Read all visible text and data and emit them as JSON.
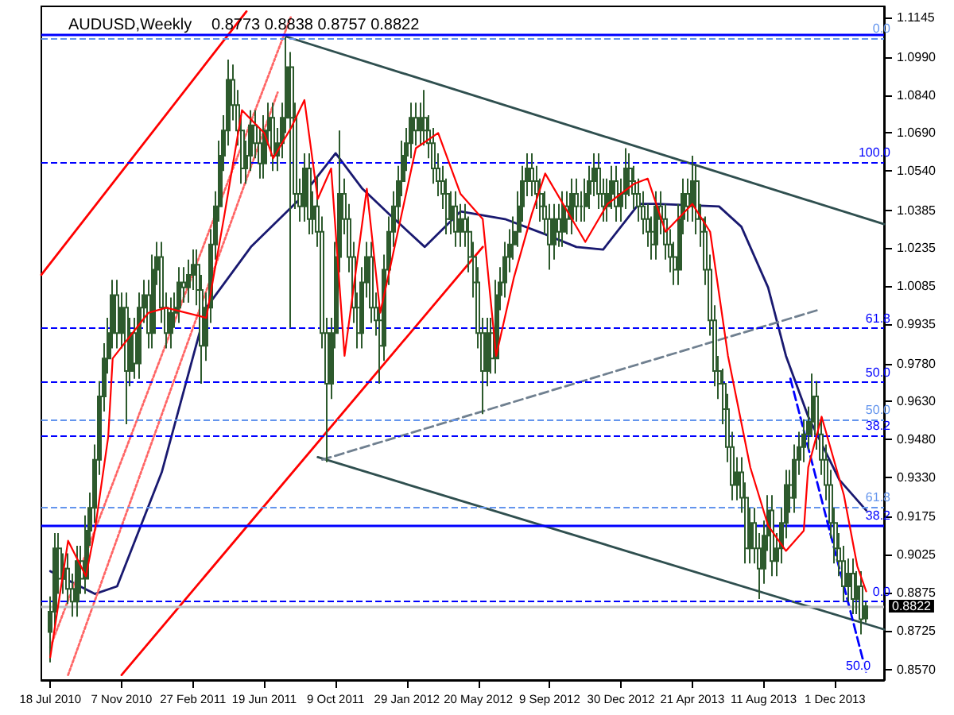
{
  "chart_data": {
    "type": "candlestick",
    "title": "AUDUSD,Weekly",
    "subtitle": "0.8773 0.8838 0.8757 0.8822",
    "marker": "none",
    "xlim": [
      "2010-07-04",
      "2014-02-16"
    ],
    "ylim": [
      0.853,
      1.119
    ],
    "xticks": [
      {
        "value": "2010-07-18",
        "label": "18 Jul 2010"
      },
      {
        "value": "2010-11-07",
        "label": "7 Nov 2010"
      },
      {
        "value": "2011-02-27",
        "label": "27 Feb 2011"
      },
      {
        "value": "2011-06-19",
        "label": "19 Jun 2011"
      },
      {
        "value": "2011-10-09",
        "label": "9 Oct 2011"
      },
      {
        "value": "2012-01-29",
        "label": "29 Jan 2012"
      },
      {
        "value": "2012-05-20",
        "label": "20 May 2012"
      },
      {
        "value": "2012-09-09",
        "label": "9 Sep 2012"
      },
      {
        "value": "2012-12-30",
        "label": "30 Dec 2012"
      },
      {
        "value": "2013-04-21",
        "label": "21 Apr 2013"
      },
      {
        "value": "2013-08-11",
        "label": "11 Aug 2013"
      },
      {
        "value": "2013-12-01",
        "label": "1 Dec 2013"
      }
    ],
    "yticks": [
      {
        "value": 1.1145,
        "label": "1.1145"
      },
      {
        "value": 1.099,
        "label": "1.0990"
      },
      {
        "value": 1.084,
        "label": "1.0840"
      },
      {
        "value": 1.069,
        "label": "1.0690"
      },
      {
        "value": 1.054,
        "label": "1.0540"
      },
      {
        "value": 1.0385,
        "label": "1.0385"
      },
      {
        "value": 1.0235,
        "label": "1.0235"
      },
      {
        "value": 1.0085,
        "label": "1.0085"
      },
      {
        "value": 0.9935,
        "label": "0.9935"
      },
      {
        "value": 0.978,
        "label": "0.9780"
      },
      {
        "value": 0.963,
        "label": "0.9630"
      },
      {
        "value": 0.948,
        "label": "0.9480"
      },
      {
        "value": 0.933,
        "label": "0.9330"
      },
      {
        "value": 0.9175,
        "label": "0.9175"
      },
      {
        "value": 0.9025,
        "label": "0.9025"
      },
      {
        "value": 0.8875,
        "label": "0.8875"
      },
      {
        "value": 0.8725,
        "label": "0.8725"
      },
      {
        "value": 0.857,
        "label": "0.8570"
      }
    ],
    "series": [
      {
        "type": "candlestick",
        "color": "#2d5a2d",
        "x": [
          "2010-07-18",
          "2010-07-25",
          "2010-08-01",
          "2010-08-08",
          "2010-08-15",
          "2010-08-22",
          "2010-08-29",
          "2010-09-05",
          "2010-09-12",
          "2010-09-19",
          "2010-09-26",
          "2010-10-03",
          "2010-10-10",
          "2010-10-17",
          "2010-10-24",
          "2010-10-31",
          "2010-11-07",
          "2010-11-14",
          "2010-11-21",
          "2010-11-28",
          "2010-12-05",
          "2010-12-12",
          "2010-12-19",
          "2010-12-26",
          "2011-01-02",
          "2011-01-09",
          "2011-01-16",
          "2011-01-23",
          "2011-01-30",
          "2011-02-06",
          "2011-02-13",
          "2011-02-20",
          "2011-02-27",
          "2011-03-06",
          "2011-03-13",
          "2011-03-20",
          "2011-03-27",
          "2011-04-03",
          "2011-04-10",
          "2011-04-17",
          "2011-04-24",
          "2011-05-01",
          "2011-05-08",
          "2011-05-15",
          "2011-05-22",
          "2011-05-29",
          "2011-06-05",
          "2011-06-12",
          "2011-06-19",
          "2011-06-26",
          "2011-07-03",
          "2011-07-10",
          "2011-07-17",
          "2011-07-24",
          "2011-07-31",
          "2011-08-07",
          "2011-08-14",
          "2011-08-21",
          "2011-08-28",
          "2011-09-04",
          "2011-09-11",
          "2011-09-18",
          "2011-09-25",
          "2011-10-02",
          "2011-10-09",
          "2011-10-16",
          "2011-10-23",
          "2011-10-30",
          "2011-11-06",
          "2011-11-13",
          "2011-11-20",
          "2011-11-27",
          "2011-12-04",
          "2011-12-11",
          "2011-12-18",
          "2011-12-25",
          "2012-01-01",
          "2012-01-08",
          "2012-01-15",
          "2012-01-22",
          "2012-01-29",
          "2012-02-05",
          "2012-02-12",
          "2012-02-19",
          "2012-02-26",
          "2012-03-04",
          "2012-03-11",
          "2012-03-18",
          "2012-03-25",
          "2012-04-01",
          "2012-04-08",
          "2012-04-15",
          "2012-04-22",
          "2012-04-29",
          "2012-05-06",
          "2012-05-13",
          "2012-05-20",
          "2012-05-27",
          "2012-06-03",
          "2012-06-10",
          "2012-06-17",
          "2012-06-24",
          "2012-07-01",
          "2012-07-08",
          "2012-07-15",
          "2012-07-22",
          "2012-07-29",
          "2012-08-05",
          "2012-08-12",
          "2012-08-19",
          "2012-08-26",
          "2012-09-02",
          "2012-09-09",
          "2012-09-16",
          "2012-09-23",
          "2012-09-30",
          "2012-10-07",
          "2012-10-14",
          "2012-10-21",
          "2012-10-28",
          "2012-11-04",
          "2012-11-11",
          "2012-11-18",
          "2012-11-25",
          "2012-12-02",
          "2012-12-09",
          "2012-12-16",
          "2012-12-23",
          "2012-12-30",
          "2013-01-06",
          "2013-01-13",
          "2013-01-20",
          "2013-01-27",
          "2013-02-03",
          "2013-02-10",
          "2013-02-17",
          "2013-02-24",
          "2013-03-03",
          "2013-03-10",
          "2013-03-17",
          "2013-03-24",
          "2013-03-31",
          "2013-04-07",
          "2013-04-14",
          "2013-04-21",
          "2013-04-28",
          "2013-05-05",
          "2013-05-12",
          "2013-05-19",
          "2013-05-26",
          "2013-06-02",
          "2013-06-09",
          "2013-06-16",
          "2013-06-23",
          "2013-06-30",
          "2013-07-07",
          "2013-07-14",
          "2013-07-21",
          "2013-07-28",
          "2013-08-04",
          "2013-08-11",
          "2013-08-18",
          "2013-08-25",
          "2013-09-01",
          "2013-09-08",
          "2013-09-15",
          "2013-09-22",
          "2013-09-29",
          "2013-10-06",
          "2013-10-13",
          "2013-10-20",
          "2013-10-27",
          "2013-11-03",
          "2013-11-10",
          "2013-11-17",
          "2013-11-24",
          "2013-12-01",
          "2013-12-08",
          "2013-12-15",
          "2013-12-22",
          "2013-12-29",
          "2014-01-05",
          "2014-01-12",
          "2014-01-19"
        ],
        "ohlc": [
          [
            0.872,
            0.886,
            0.86,
            0.88
          ],
          [
            0.88,
            0.911,
            0.874,
            0.905
          ],
          [
            0.905,
            0.911,
            0.887,
            0.893
          ],
          [
            0.893,
            0.903,
            0.887,
            0.897
          ],
          [
            0.897,
            0.903,
            0.883,
            0.889
          ],
          [
            0.889,
            0.895,
            0.878,
            0.884
          ],
          [
            0.884,
            0.906,
            0.878,
            0.9
          ],
          [
            0.9,
            0.906,
            0.887,
            0.893
          ],
          [
            0.893,
            0.918,
            0.887,
            0.912
          ],
          [
            0.912,
            0.927,
            0.906,
            0.921
          ],
          [
            0.921,
            0.946,
            0.915,
            0.94
          ],
          [
            0.94,
            0.971,
            0.934,
            0.965
          ],
          [
            0.965,
            0.986,
            0.959,
            0.98
          ],
          [
            0.98,
            0.996,
            0.974,
            0.99
          ],
          [
            0.99,
            1.011,
            0.984,
            1.005
          ],
          [
            1.005,
            1.011,
            0.984,
            0.99
          ],
          [
            0.99,
            1.006,
            0.984,
            1.0
          ],
          [
            1.0,
            1.006,
            0.954,
            0.975
          ],
          [
            0.975,
            0.996,
            0.969,
            0.99
          ],
          [
            0.99,
            0.996,
            0.972,
            0.978
          ],
          [
            0.978,
            1.006,
            0.972,
            1.0
          ],
          [
            1.0,
            1.011,
            0.994,
            1.005
          ],
          [
            1.005,
            1.011,
            0.984,
            0.99
          ],
          [
            0.99,
            1.021,
            0.984,
            1.015
          ],
          [
            1.015,
            1.026,
            1.009,
            1.02
          ],
          [
            1.02,
            1.026,
            0.994,
            1.0
          ],
          [
            1.0,
            1.006,
            0.984,
            0.99
          ],
          [
            0.99,
            1.004,
            0.984,
            0.998
          ],
          [
            0.998,
            1.006,
            0.992,
            1.0
          ],
          [
            1.0,
            1.016,
            0.994,
            1.01
          ],
          [
            1.01,
            1.016,
            1.002,
            1.008
          ],
          [
            1.008,
            1.019,
            1.002,
            1.013
          ],
          [
            1.013,
            1.023,
            1.007,
            1.017
          ],
          [
            1.017,
            1.023,
            1.001,
            1.007
          ],
          [
            1.007,
            1.013,
            0.97,
            0.985
          ],
          [
            0.985,
            1.006,
            0.979,
            1.0
          ],
          [
            1.0,
            1.031,
            0.994,
            1.025
          ],
          [
            1.025,
            1.046,
            1.019,
            1.04
          ],
          [
            1.04,
            1.066,
            1.034,
            1.06
          ],
          [
            1.06,
            1.076,
            1.054,
            1.07
          ],
          [
            1.07,
            1.098,
            1.064,
            1.09
          ],
          [
            1.09,
            1.096,
            1.074,
            1.08
          ],
          [
            1.08,
            1.086,
            1.064,
            1.07
          ],
          [
            1.07,
            1.076,
            1.049,
            1.055
          ],
          [
            1.055,
            1.066,
            1.049,
            1.06
          ],
          [
            1.06,
            1.078,
            1.054,
            1.072
          ],
          [
            1.072,
            1.078,
            1.059,
            1.065
          ],
          [
            1.065,
            1.071,
            1.051,
            1.057
          ],
          [
            1.057,
            1.076,
            1.051,
            1.07
          ],
          [
            1.07,
            1.081,
            1.064,
            1.075
          ],
          [
            1.075,
            1.081,
            1.054,
            1.06
          ],
          [
            1.06,
            1.071,
            1.054,
            1.065
          ],
          [
            1.065,
            1.081,
            1.059,
            1.075
          ],
          [
            1.075,
            1.107,
            1.069,
            1.095
          ],
          [
            1.095,
            1.101,
            0.992,
            1.075
          ],
          [
            1.075,
            1.081,
            1.039,
            1.045
          ],
          [
            1.045,
            1.051,
            1.034,
            1.04
          ],
          [
            1.04,
            1.061,
            1.034,
            1.055
          ],
          [
            1.055,
            1.061,
            1.029,
            1.035
          ],
          [
            1.035,
            1.046,
            1.029,
            1.04
          ],
          [
            1.04,
            1.052,
            1.024,
            1.03
          ],
          [
            1.03,
            1.036,
            0.984,
            0.99
          ],
          [
            0.99,
            0.996,
            0.939,
            0.97
          ],
          [
            0.97,
            0.996,
            0.964,
            0.99
          ],
          [
            0.99,
            1.026,
            0.984,
            1.02
          ],
          [
            1.02,
            1.07,
            1.014,
            1.045
          ],
          [
            1.045,
            1.051,
            1.029,
            1.035
          ],
          [
            1.035,
            1.041,
            1.014,
            1.02
          ],
          [
            1.02,
            1.026,
            0.994,
            1.0
          ],
          [
            1.0,
            1.006,
            0.984,
            0.99
          ],
          [
            0.99,
            1.016,
            0.984,
            1.01
          ],
          [
            1.01,
            1.026,
            1.004,
            1.02
          ],
          [
            1.02,
            1.026,
            0.994,
            1.0
          ],
          [
            1.0,
            1.006,
            0.989,
            0.995
          ],
          [
            0.995,
            1.001,
            0.97,
            0.985
          ],
          [
            0.985,
            1.021,
            0.979,
            1.015
          ],
          [
            1.015,
            1.036,
            1.009,
            1.03
          ],
          [
            1.03,
            1.046,
            1.024,
            1.04
          ],
          [
            1.04,
            1.056,
            1.034,
            1.05
          ],
          [
            1.05,
            1.066,
            1.044,
            1.06
          ],
          [
            1.06,
            1.071,
            1.054,
            1.065
          ],
          [
            1.065,
            1.081,
            1.059,
            1.075
          ],
          [
            1.075,
            1.081,
            1.064,
            1.07
          ],
          [
            1.07,
            1.081,
            1.064,
            1.075
          ],
          [
            1.075,
            1.086,
            1.064,
            1.07
          ],
          [
            1.07,
            1.076,
            1.059,
            1.065
          ],
          [
            1.065,
            1.071,
            1.049,
            1.055
          ],
          [
            1.055,
            1.061,
            1.044,
            1.05
          ],
          [
            1.05,
            1.056,
            1.039,
            1.045
          ],
          [
            1.045,
            1.051,
            1.029,
            1.035
          ],
          [
            1.035,
            1.046,
            1.029,
            1.04
          ],
          [
            1.04,
            1.046,
            1.024,
            1.03
          ],
          [
            1.03,
            1.041,
            1.024,
            1.035
          ],
          [
            1.035,
            1.041,
            1.024,
            1.03
          ],
          [
            1.03,
            1.036,
            1.014,
            1.02
          ],
          [
            1.02,
            1.026,
            1.004,
            1.01
          ],
          [
            1.01,
            1.016,
            0.984,
            0.99
          ],
          [
            0.99,
            0.996,
            0.958,
            0.975
          ],
          [
            0.975,
            0.996,
            0.969,
            0.99
          ],
          [
            0.99,
            0.996,
            0.974,
            0.98
          ],
          [
            0.98,
            1.011,
            0.974,
            1.005
          ],
          [
            1.005,
            1.016,
            0.999,
            1.01
          ],
          [
            1.01,
            1.026,
            1.004,
            1.02
          ],
          [
            1.02,
            1.031,
            1.014,
            1.025
          ],
          [
            1.025,
            1.036,
            1.019,
            1.03
          ],
          [
            1.03,
            1.046,
            1.024,
            1.04
          ],
          [
            1.04,
            1.056,
            1.034,
            1.05
          ],
          [
            1.05,
            1.061,
            1.044,
            1.055
          ],
          [
            1.055,
            1.061,
            1.044,
            1.05
          ],
          [
            1.05,
            1.056,
            1.039,
            1.045
          ],
          [
            1.045,
            1.051,
            1.034,
            1.04
          ],
          [
            1.04,
            1.046,
            1.029,
            1.035
          ],
          [
            1.035,
            1.041,
            1.015,
            1.025
          ],
          [
            1.025,
            1.041,
            1.019,
            1.035
          ],
          [
            1.035,
            1.041,
            1.024,
            1.03
          ],
          [
            1.03,
            1.046,
            1.024,
            1.04
          ],
          [
            1.04,
            1.046,
            1.029,
            1.035
          ],
          [
            1.035,
            1.051,
            1.029,
            1.045
          ],
          [
            1.045,
            1.051,
            1.034,
            1.04
          ],
          [
            1.04,
            1.046,
            1.034,
            1.04
          ],
          [
            1.04,
            1.051,
            1.034,
            1.045
          ],
          [
            1.045,
            1.056,
            1.039,
            1.05
          ],
          [
            1.05,
            1.061,
            1.044,
            1.055
          ],
          [
            1.055,
            1.061,
            1.039,
            1.045
          ],
          [
            1.045,
            1.051,
            1.034,
            1.04
          ],
          [
            1.04,
            1.051,
            1.034,
            1.045
          ],
          [
            1.045,
            1.056,
            1.039,
            1.05
          ],
          [
            1.05,
            1.056,
            1.034,
            1.04
          ],
          [
            1.04,
            1.051,
            1.034,
            1.045
          ],
          [
            1.045,
            1.063,
            1.039,
            1.055
          ],
          [
            1.055,
            1.061,
            1.044,
            1.05
          ],
          [
            1.05,
            1.056,
            1.039,
            1.045
          ],
          [
            1.045,
            1.051,
            1.034,
            1.04
          ],
          [
            1.04,
            1.046,
            1.029,
            1.035
          ],
          [
            1.035,
            1.041,
            1.024,
            1.03
          ],
          [
            1.03,
            1.036,
            1.019,
            1.025
          ],
          [
            1.025,
            1.046,
            1.019,
            1.04
          ],
          [
            1.04,
            1.046,
            1.029,
            1.035
          ],
          [
            1.035,
            1.041,
            1.019,
            1.025
          ],
          [
            1.025,
            1.031,
            1.014,
            1.02
          ],
          [
            1.02,
            1.026,
            1.009,
            1.015
          ],
          [
            1.015,
            1.041,
            1.009,
            1.035
          ],
          [
            1.035,
            1.051,
            1.029,
            1.045
          ],
          [
            1.045,
            1.051,
            1.034,
            1.04
          ],
          [
            1.04,
            1.06,
            1.034,
            1.05
          ],
          [
            1.05,
            1.056,
            1.029,
            1.035
          ],
          [
            1.035,
            1.041,
            1.024,
            1.03
          ],
          [
            1.03,
            1.036,
            1.009,
            1.015
          ],
          [
            1.015,
            1.021,
            0.989,
            0.995
          ],
          [
            0.995,
            1.001,
            0.969,
            0.975
          ],
          [
            0.975,
            0.981,
            0.964,
            0.97
          ],
          [
            0.97,
            0.976,
            0.954,
            0.96
          ],
          [
            0.96,
            0.966,
            0.939,
            0.945
          ],
          [
            0.945,
            0.951,
            0.924,
            0.93
          ],
          [
            0.93,
            0.941,
            0.924,
            0.935
          ],
          [
            0.935,
            0.941,
            0.919,
            0.925
          ],
          [
            0.925,
            0.931,
            0.899,
            0.905
          ],
          [
            0.905,
            0.921,
            0.899,
            0.915
          ],
          [
            0.915,
            0.921,
            0.899,
            0.905
          ],
          [
            0.905,
            0.911,
            0.885,
            0.897
          ],
          [
            0.897,
            0.916,
            0.891,
            0.91
          ],
          [
            0.91,
            0.926,
            0.904,
            0.92
          ],
          [
            0.92,
            0.926,
            0.894,
            0.9
          ],
          [
            0.9,
            0.911,
            0.894,
            0.905
          ],
          [
            0.905,
            0.921,
            0.899,
            0.915
          ],
          [
            0.915,
            0.936,
            0.909,
            0.93
          ],
          [
            0.93,
            0.936,
            0.919,
            0.925
          ],
          [
            0.925,
            0.946,
            0.919,
            0.94
          ],
          [
            0.94,
            0.951,
            0.934,
            0.945
          ],
          [
            0.945,
            0.956,
            0.939,
            0.95
          ],
          [
            0.95,
            0.961,
            0.944,
            0.955
          ],
          [
            0.955,
            0.974,
            0.949,
            0.965
          ],
          [
            0.965,
            0.971,
            0.944,
            0.95
          ],
          [
            0.95,
            0.956,
            0.934,
            0.94
          ],
          [
            0.94,
            0.946,
            0.924,
            0.93
          ],
          [
            0.93,
            0.936,
            0.909,
            0.915
          ],
          [
            0.915,
            0.921,
            0.899,
            0.905
          ],
          [
            0.905,
            0.911,
            0.894,
            0.9
          ],
          [
            0.9,
            0.906,
            0.884,
            0.89
          ],
          [
            0.89,
            0.901,
            0.884,
            0.895
          ],
          [
            0.895,
            0.901,
            0.879,
            0.885
          ],
          [
            0.885,
            0.896,
            0.879,
            0.89
          ],
          [
            0.89,
            0.896,
            0.871,
            0.877
          ],
          [
            0.8773,
            0.8838,
            0.8757,
            0.8822
          ]
        ]
      },
      {
        "type": "line",
        "color": "#191970",
        "x": [
          "2010-07-18",
          "2010-09-26",
          "2010-10-31",
          "2011-01-09",
          "2011-03-20",
          "2011-05-29",
          "2011-08-14",
          "2011-10-09",
          "2011-11-20",
          "2012-01-01",
          "2012-02-26",
          "2012-04-22",
          "2012-07-01",
          "2012-09-02",
          "2012-10-21",
          "2012-12-02",
          "2013-01-27",
          "2013-02-24",
          "2013-06-02",
          "2013-07-07",
          "2013-08-18",
          "2013-09-15",
          "2013-10-20",
          "2013-12-08",
          "2014-01-19"
        ],
        "values": [
          0.896,
          0.887,
          0.89,
          0.935,
          1.0,
          1.024,
          1.043,
          1.061,
          1.047,
          1.037,
          1.024,
          1.038,
          1.035,
          1.029,
          1.024,
          1.023,
          1.041,
          1.041,
          1.04,
          1.032,
          1.008,
          0.981,
          0.957,
          0.932,
          0.92
        ]
      },
      {
        "type": "line",
        "color": "#ff0000",
        "x": [
          "2010-07-18",
          "2010-08-15",
          "2010-09-12",
          "2010-09-26",
          "2010-10-17",
          "2010-10-24",
          "2010-12-19",
          "2011-01-16",
          "2011-03-20",
          "2011-04-17",
          "2011-05-15",
          "2011-06-19",
          "2011-07-03",
          "2011-07-31",
          "2011-08-21",
          "2011-09-11",
          "2011-10-02",
          "2011-10-23",
          "2011-11-27",
          "2011-12-18",
          "2012-01-01",
          "2012-02-12",
          "2012-03-18",
          "2012-04-22",
          "2012-05-27",
          "2012-06-17",
          "2012-07-15",
          "2012-08-12",
          "2012-09-02",
          "2012-10-07",
          "2012-11-04",
          "2012-12-09",
          "2013-01-20",
          "2013-02-10",
          "2013-03-10",
          "2013-04-21",
          "2013-05-19",
          "2013-06-16",
          "2013-07-21",
          "2013-08-18",
          "2013-09-15",
          "2013-10-13",
          "2013-10-20",
          "2013-11-10",
          "2013-12-15",
          "2014-01-05",
          "2014-01-19"
        ],
        "values": [
          0.862,
          0.908,
          0.894,
          0.912,
          0.949,
          0.98,
          0.998,
          1.0,
          0.996,
          1.036,
          1.078,
          1.069,
          1.059,
          1.071,
          1.082,
          1.043,
          1.055,
          0.981,
          1.047,
          0.998,
          1.014,
          1.063,
          1.069,
          1.045,
          1.035,
          0.981,
          1.012,
          1.037,
          1.053,
          1.038,
          1.026,
          1.041,
          1.049,
          1.051,
          1.03,
          1.041,
          1.03,
          0.981,
          0.937,
          0.914,
          0.904,
          0.912,
          0.937,
          0.957,
          0.926,
          0.898,
          0.888
        ]
      },
      {
        "type": "line",
        "color": "#2f4f4f",
        "x": [
          "2011-07-24",
          "2014-02-16"
        ],
        "values": [
          1.107,
          1.033
        ]
      },
      {
        "type": "line",
        "color": "#2f4f4f",
        "x": [
          "2011-09-11",
          "2014-02-16"
        ],
        "values": [
          0.941,
          0.873
        ]
      },
      {
        "type": "line",
        "color": "#ff0000",
        "x": [
          "2010-07-04",
          "2011-05-22"
        ],
        "values": [
          1.013,
          1.117
        ]
      },
      {
        "type": "line",
        "color": "#ff0000",
        "x": [
          "2010-11-07",
          "2012-05-27"
        ],
        "values": [
          0.855,
          1.024
        ]
      },
      {
        "type": "line",
        "color": "#ff6666",
        "line_style": "dotted",
        "x": [
          "2010-07-18",
          "2011-07-31"
        ],
        "values": [
          0.866,
          1.115
        ]
      },
      {
        "type": "line",
        "color": "#ff6666",
        "line_style": "dotted",
        "x": [
          "2010-08-15",
          "2011-07-10"
        ],
        "values": [
          0.855,
          1.085
        ]
      },
      {
        "type": "line",
        "color": "#708090",
        "line_style": "dashed",
        "x": [
          "2011-09-18",
          "2013-11-03"
        ],
        "values": [
          0.94,
          0.999
        ]
      },
      {
        "type": "line",
        "color": "#0000ff",
        "line_style": "dashed",
        "x": [
          "2013-09-22",
          "2014-01-19"
        ],
        "values": [
          0.972,
          0.856
        ]
      }
    ],
    "ref_lines": [
      {
        "axis": "y",
        "value": 1.1063,
        "color": "#6495ed",
        "line_style": "dashed"
      },
      {
        "axis": "y",
        "value": 1.0574,
        "color": "#0000ff",
        "line_style": "dashed"
      },
      {
        "axis": "y",
        "value": 0.992,
        "color": "#0000ff",
        "line_style": "dashed"
      },
      {
        "axis": "y",
        "value": 0.9705,
        "color": "#0000ff",
        "line_style": "dashed"
      },
      {
        "axis": "y",
        "value": 0.956,
        "color": "#6495ed",
        "line_style": "dashed"
      },
      {
        "axis": "y",
        "value": 0.9497,
        "color": "#0000ff",
        "line_style": "dashed"
      },
      {
        "axis": "y",
        "value": 0.9215,
        "color": "#6495ed",
        "line_style": "dashed"
      },
      {
        "axis": "y",
        "value": 0.9142,
        "color": "#0000ff",
        "line_style": "solid"
      },
      {
        "axis": "y",
        "value": 0.8842,
        "color": "#0000ff",
        "line_style": "dashed"
      },
      {
        "axis": "y",
        "value": 1.1076,
        "color": "#0000ff",
        "line_style": "solid"
      },
      {
        "axis": "y",
        "value": 0.8822,
        "label": "0.8822",
        "color": "#c0c0c0",
        "line_style": "solid"
      }
    ],
    "annotations": [
      "0.0",
      "100.0",
      "61.8",
      "50.0",
      "50.0",
      "38.2",
      "61.8",
      "38.2",
      "0.0",
      "50.0"
    ]
  }
}
